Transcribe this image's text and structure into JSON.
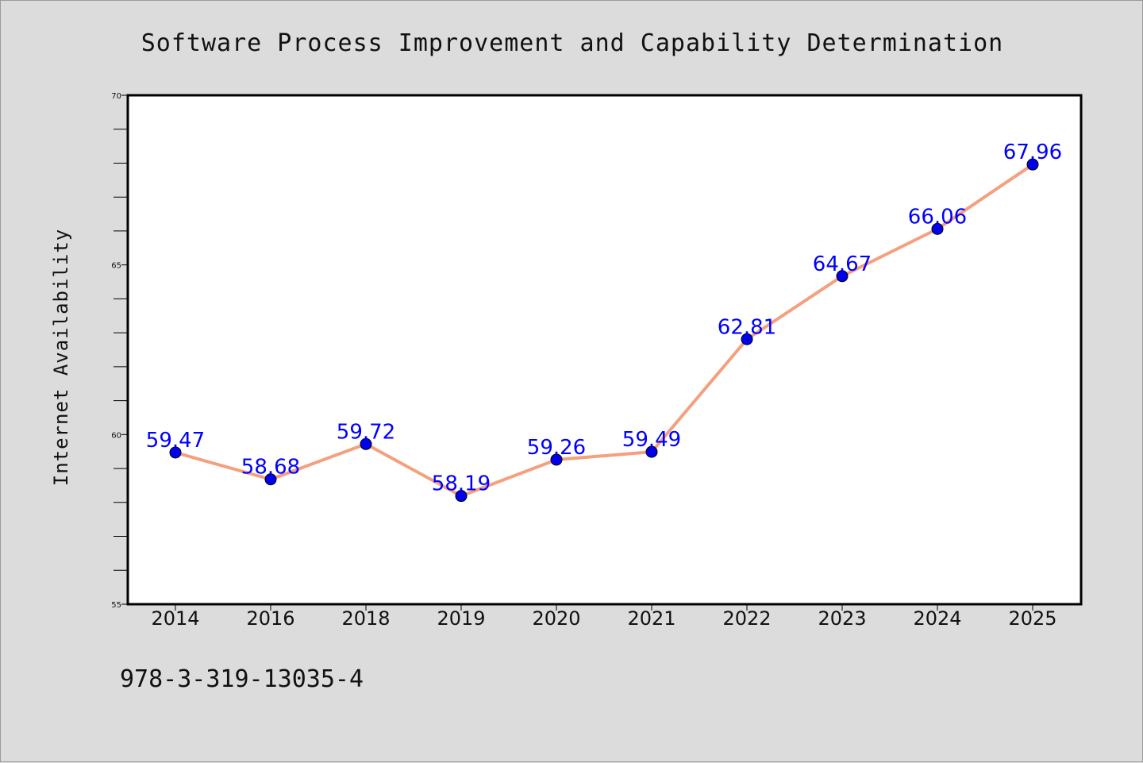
{
  "chart_data": {
    "type": "line",
    "title": "Software Process Improvement and Capability Determination",
    "xlabel": "",
    "ylabel": "Internet Availability",
    "categories": [
      "2014",
      "2016",
      "2018",
      "2019",
      "2020",
      "2021",
      "2022",
      "2023",
      "2024",
      "2025"
    ],
    "series": [
      {
        "values": [
          59.47,
          58.68,
          59.72,
          58.19,
          59.26,
          59.49,
          62.81,
          64.67,
          66.06,
          67.96
        ],
        "labels": [
          "59.47",
          "58.68",
          "59.72",
          "58.19",
          "59.26",
          "59.49",
          "62.81",
          "64.67",
          "66.06",
          "67.96"
        ],
        "line_color": "#f4a07e",
        "marker_color": "#0000ee"
      }
    ],
    "ylim": [
      55,
      70
    ],
    "yticks": [
      "55",
      "60",
      "65",
      "70"
    ],
    "grid": false,
    "legend": "none"
  },
  "footer": {
    "isbn": "978-3-319-13035-4"
  },
  "colors": {
    "background": "#dcdcdc",
    "plot_background": "#ffffff",
    "data_label": "#0000ff"
  }
}
